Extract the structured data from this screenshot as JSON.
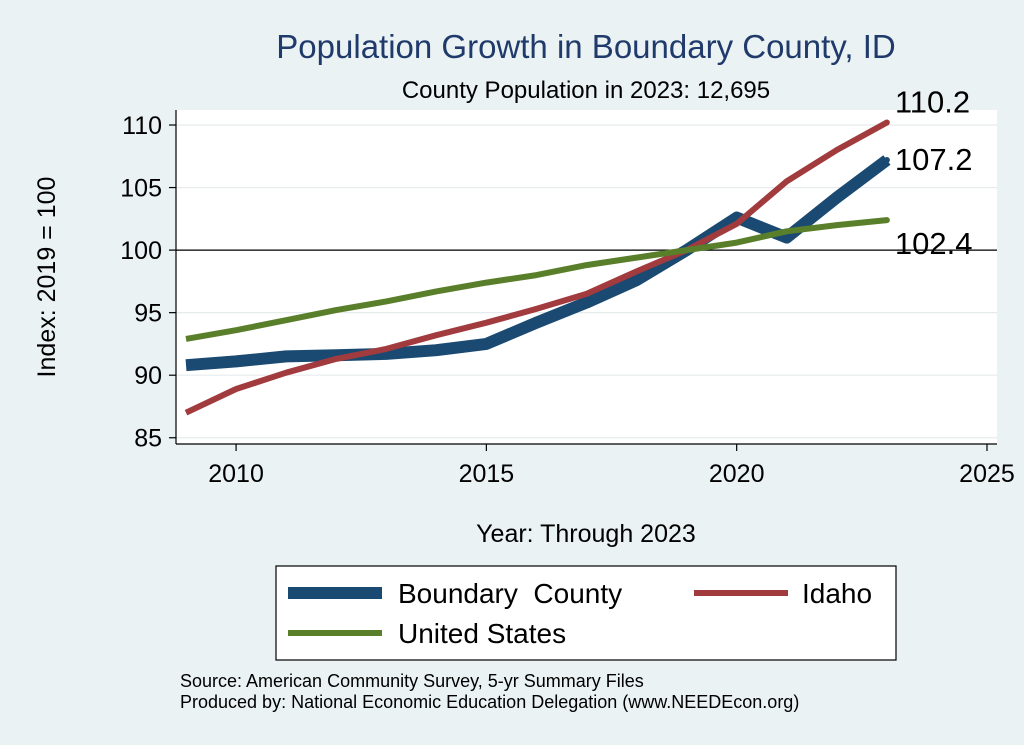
{
  "chart_data": {
    "type": "line",
    "title": "Population Growth in Boundary County, ID",
    "subtitle": "County Population in 2023: 12,695",
    "xlabel": "Year: Through 2023",
    "ylabel": "Index: 2019 = 100",
    "xlim": [
      2008.8,
      2025.2
    ],
    "ylim": [
      84.5,
      111.2
    ],
    "xticks": [
      2010,
      2015,
      2020,
      2025
    ],
    "yticks": [
      85,
      90,
      95,
      100,
      105,
      110
    ],
    "reference_line": 100,
    "grid": true,
    "series": [
      {
        "name": "Boundary  County",
        "color": "#1a4a72",
        "x": [
          2009,
          2010,
          2011,
          2012,
          2013,
          2014,
          2015,
          2016,
          2017,
          2018,
          2019,
          2020,
          2021,
          2022,
          2023
        ],
        "values": [
          90.8,
          91.1,
          91.5,
          91.6,
          91.7,
          92.0,
          92.5,
          94.2,
          95.8,
          97.6,
          100.0,
          102.6,
          101.0,
          104.2,
          107.2
        ],
        "end_label": "107.2"
      },
      {
        "name": "Idaho",
        "color": "#a23b3d",
        "x": [
          2009,
          2010,
          2011,
          2012,
          2013,
          2014,
          2015,
          2016,
          2017,
          2018,
          2019,
          2020,
          2021,
          2022,
          2023
        ],
        "values": [
          87.0,
          88.9,
          90.2,
          91.3,
          92.1,
          93.2,
          94.2,
          95.3,
          96.5,
          98.3,
          100.0,
          102.1,
          105.5,
          108.0,
          110.2
        ],
        "end_label": "110.2"
      },
      {
        "name": "United States",
        "color": "#5a7f2b",
        "x": [
          2009,
          2010,
          2011,
          2012,
          2013,
          2014,
          2015,
          2016,
          2017,
          2018,
          2019,
          2020,
          2021,
          2022,
          2023
        ],
        "values": [
          92.9,
          93.6,
          94.4,
          95.2,
          95.9,
          96.7,
          97.4,
          98.0,
          98.8,
          99.4,
          100.0,
          100.6,
          101.5,
          102.0,
          102.4
        ],
        "end_label": "102.4"
      }
    ],
    "legend": {
      "position": "bottom",
      "order": [
        0,
        1,
        2
      ]
    }
  },
  "notes": {
    "source": "Source: American Community Survey, 5-yr Summary Files",
    "producer": "Produced by: National Economic Education Delegation (www.NEEDEcon.org)"
  }
}
